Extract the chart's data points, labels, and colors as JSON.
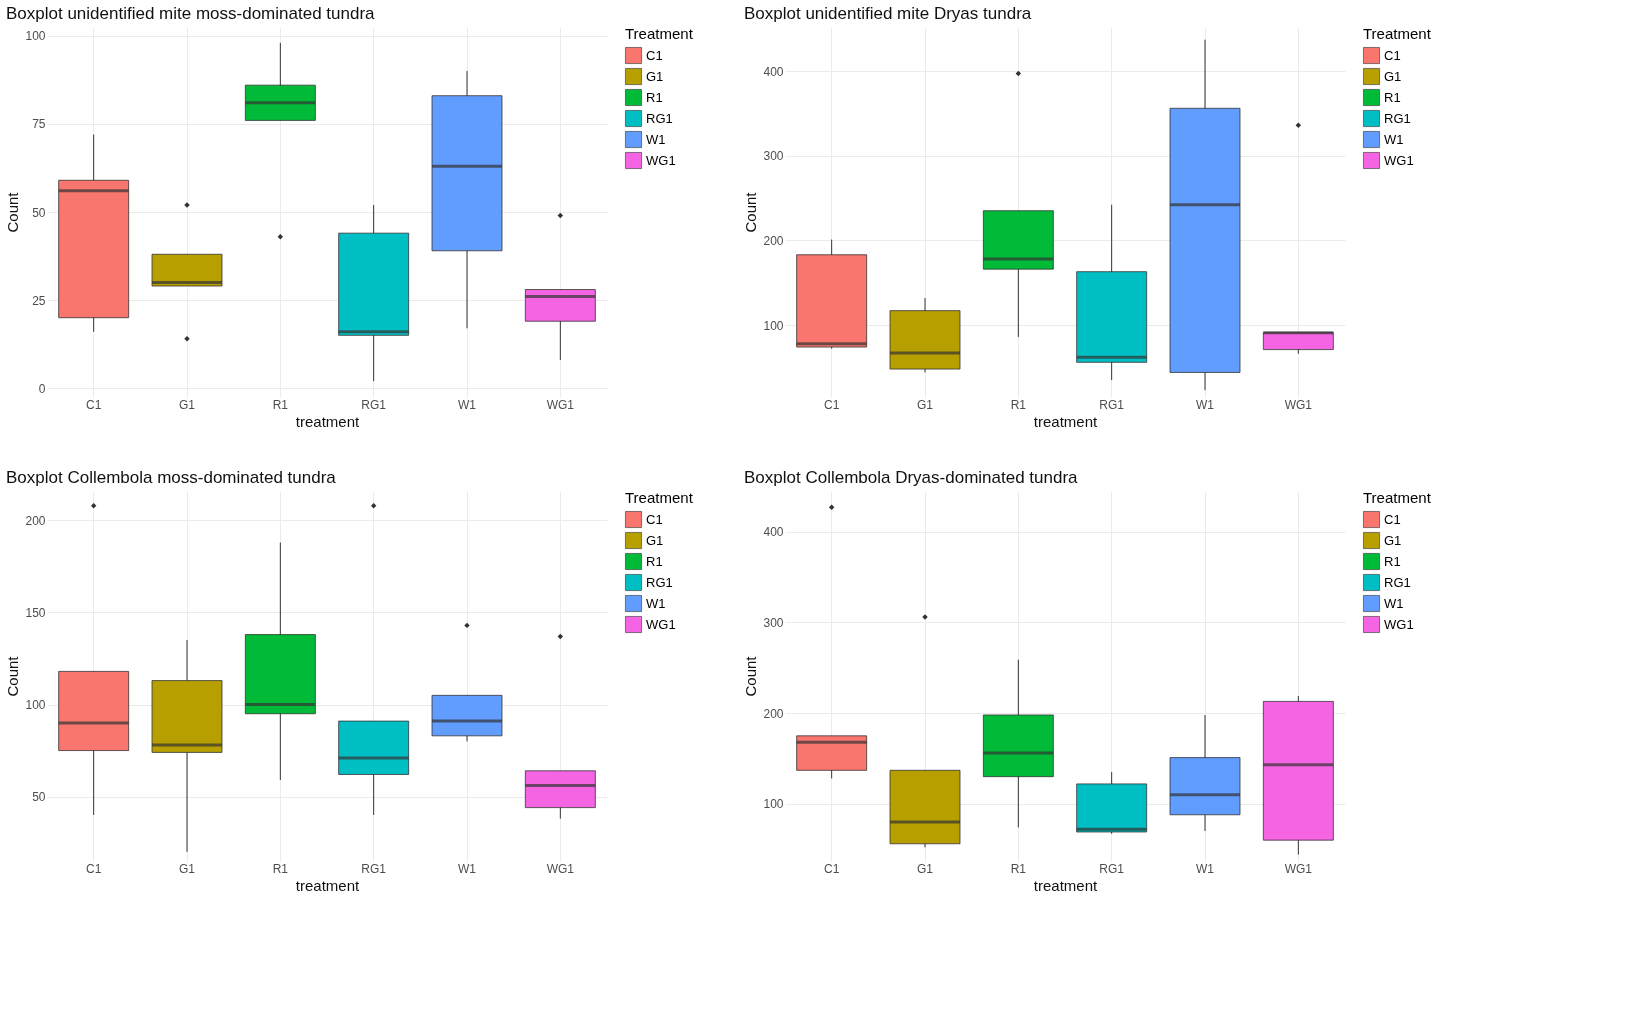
{
  "chart_data": [
    {
      "type": "box",
      "title": "Boxplot unidentified mite moss-dominated tundra",
      "xlabel": "treatment",
      "ylabel": "Count",
      "legend_title": "Treatment",
      "legend": "right",
      "grid": true,
      "categories": [
        "C1",
        "G1",
        "R1",
        "RG1",
        "W1",
        "WG1"
      ],
      "ylim": [
        -2.5,
        102.5
      ],
      "yticks": [
        0,
        25,
        50,
        75,
        100
      ],
      "series": [
        {
          "name": "C1",
          "color": "#f8766d",
          "boxes": [
            {
              "low": 16,
              "q1": 20,
              "median": 56,
              "q3": 59,
              "high": 72
            },
            null,
            null,
            null,
            null,
            null
          ]
        },
        {
          "name": "G1",
          "color": "#b79f00",
          "boxes": [
            null,
            {
              "low": 29,
              "q1": 29,
              "median": 30,
              "q3": 38,
              "high": 38,
              "outliers": [
                52,
                14
              ]
            },
            null,
            null,
            null,
            null
          ]
        },
        {
          "name": "R1",
          "color": "#00ba38",
          "boxes": [
            null,
            null,
            {
              "low": 76,
              "q1": 76,
              "median": 81,
              "q3": 86,
              "high": 98,
              "outliers": [
                43
              ]
            },
            null,
            null,
            null
          ]
        },
        {
          "name": "RG1",
          "color": "#00bfc4",
          "boxes": [
            null,
            null,
            null,
            {
              "low": 2,
              "q1": 15,
              "median": 16,
              "q3": 44,
              "high": 52
            },
            null,
            null
          ]
        },
        {
          "name": "W1",
          "color": "#619cff",
          "boxes": [
            null,
            null,
            null,
            null,
            {
              "low": 17,
              "q1": 39,
              "median": 63,
              "q3": 83,
              "high": 90
            },
            null
          ]
        },
        {
          "name": "WG1",
          "color": "#f564e3",
          "boxes": [
            null,
            null,
            null,
            null,
            null,
            {
              "low": 8,
              "q1": 19,
              "median": 26,
              "q3": 28,
              "high": 28,
              "outliers": [
                49
              ]
            }
          ]
        }
      ]
    },
    {
      "type": "box",
      "title": "Boxplot unidentified mite Dryas tundra",
      "xlabel": "treatment",
      "ylabel": "Count",
      "legend_title": "Treatment",
      "legend": "right",
      "grid": true,
      "categories": [
        "C1",
        "G1",
        "R1",
        "RG1",
        "W1",
        "WG1"
      ],
      "ylim": [
        15,
        452
      ],
      "yticks": [
        100,
        200,
        300,
        400
      ],
      "series": [
        {
          "name": "C1",
          "color": "#f8766d",
          "boxes": [
            {
              "low": 72,
              "q1": 74,
              "median": 78,
              "q3": 183,
              "high": 201
            },
            null,
            null,
            null,
            null,
            null
          ]
        },
        {
          "name": "G1",
          "color": "#b79f00",
          "boxes": [
            null,
            {
              "low": 44,
              "q1": 48,
              "median": 67,
              "q3": 117,
              "high": 132
            },
            null,
            null,
            null,
            null
          ]
        },
        {
          "name": "R1",
          "color": "#00ba38",
          "boxes": [
            null,
            null,
            {
              "low": 86,
              "q1": 166,
              "median": 178,
              "q3": 235,
              "high": 235,
              "outliers": [
                397
              ]
            },
            null,
            null,
            null
          ]
        },
        {
          "name": "RG1",
          "color": "#00bfc4",
          "boxes": [
            null,
            null,
            null,
            {
              "low": 35,
              "q1": 56,
              "median": 62,
              "q3": 163,
              "high": 242
            },
            null,
            null
          ]
        },
        {
          "name": "W1",
          "color": "#619cff",
          "boxes": [
            null,
            null,
            null,
            null,
            {
              "low": 23,
              "q1": 44,
              "median": 242,
              "q3": 356,
              "high": 437
            },
            null
          ]
        },
        {
          "name": "WG1",
          "color": "#f564e3",
          "boxes": [
            null,
            null,
            null,
            null,
            null,
            {
              "low": 66,
              "q1": 71,
              "median": 91,
              "q3": 91,
              "high": 91,
              "outliers": [
                336
              ]
            }
          ]
        }
      ]
    },
    {
      "type": "box",
      "title": "Boxplot Collembola moss-dominated tundra",
      "xlabel": "treatment",
      "ylabel": "Count",
      "legend_title": "Treatment",
      "legend": "right",
      "grid": true,
      "categories": [
        "C1",
        "G1",
        "R1",
        "RG1",
        "W1",
        "WG1"
      ],
      "ylim": [
        15,
        216
      ],
      "yticks": [
        50,
        100,
        150,
        200
      ],
      "series": [
        {
          "name": "C1",
          "color": "#f8766d",
          "boxes": [
            {
              "low": 40,
              "q1": 75,
              "median": 90,
              "q3": 118,
              "high": 118,
              "outliers": [
                208
              ]
            },
            null,
            null,
            null,
            null,
            null
          ]
        },
        {
          "name": "G1",
          "color": "#b79f00",
          "boxes": [
            null,
            {
              "low": 20,
              "q1": 74,
              "median": 78,
              "q3": 113,
              "high": 135
            },
            null,
            null,
            null,
            null
          ]
        },
        {
          "name": "R1",
          "color": "#00ba38",
          "boxes": [
            null,
            null,
            {
              "low": 59,
              "q1": 95,
              "median": 100,
              "q3": 138,
              "high": 188
            },
            null,
            null,
            null
          ]
        },
        {
          "name": "RG1",
          "color": "#00bfc4",
          "boxes": [
            null,
            null,
            null,
            {
              "low": 40,
              "q1": 62,
              "median": 71,
              "q3": 91,
              "high": 91,
              "outliers": [
                208
              ]
            },
            null,
            null
          ]
        },
        {
          "name": "W1",
          "color": "#619cff",
          "boxes": [
            null,
            null,
            null,
            null,
            {
              "low": 80,
              "q1": 83,
              "median": 91,
              "q3": 105,
              "high": 105,
              "outliers": [
                143
              ]
            },
            null
          ]
        },
        {
          "name": "WG1",
          "color": "#f564e3",
          "boxes": [
            null,
            null,
            null,
            null,
            null,
            {
              "low": 38,
              "q1": 44,
              "median": 56,
              "q3": 64,
              "high": 64,
              "outliers": [
                137
              ]
            }
          ]
        }
      ]
    },
    {
      "type": "box",
      "title": "Boxplot Collembola Dryas-dominated tundra",
      "xlabel": "treatment",
      "ylabel": "Count",
      "legend_title": "Treatment",
      "legend": "right",
      "grid": true,
      "categories": [
        "C1",
        "G1",
        "R1",
        "RG1",
        "W1",
        "WG1"
      ],
      "ylim": [
        37,
        445
      ],
      "yticks": [
        100,
        200,
        300,
        400
      ],
      "series": [
        {
          "name": "C1",
          "color": "#f8766d",
          "boxes": [
            {
              "low": 128,
              "q1": 137,
              "median": 168,
              "q3": 175,
              "high": 175,
              "outliers": [
                427
              ]
            },
            null,
            null,
            null,
            null,
            null
          ]
        },
        {
          "name": "G1",
          "color": "#b79f00",
          "boxes": [
            null,
            {
              "low": 52,
              "q1": 56,
              "median": 80,
              "q3": 137,
              "high": 137,
              "outliers": [
                306
              ]
            },
            null,
            null,
            null,
            null
          ]
        },
        {
          "name": "R1",
          "color": "#00ba38",
          "boxes": [
            null,
            null,
            {
              "low": 74,
              "q1": 130,
              "median": 156,
              "q3": 198,
              "high": 259
            },
            null,
            null,
            null
          ]
        },
        {
          "name": "RG1",
          "color": "#00bfc4",
          "boxes": [
            null,
            null,
            null,
            {
              "low": 67,
              "q1": 69,
              "median": 72,
              "q3": 122,
              "high": 135
            },
            null,
            null
          ]
        },
        {
          "name": "W1",
          "color": "#619cff",
          "boxes": [
            null,
            null,
            null,
            null,
            {
              "low": 70,
              "q1": 88,
              "median": 110,
              "q3": 151,
              "high": 198
            },
            null
          ]
        },
        {
          "name": "WG1",
          "color": "#f564e3",
          "boxes": [
            null,
            null,
            null,
            null,
            null,
            {
              "low": 44,
              "q1": 60,
              "median": 143,
              "q3": 213,
              "high": 219
            }
          ]
        }
      ]
    }
  ]
}
